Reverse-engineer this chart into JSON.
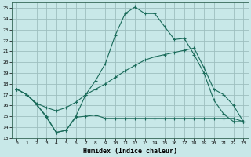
{
  "xlabel": "Humidex (Indice chaleur)",
  "bg_color": "#c8e8e8",
  "grid_color": "#9dbfbf",
  "line_color": "#1a6b5a",
  "x_ticks": [
    0,
    1,
    2,
    3,
    4,
    5,
    6,
    7,
    8,
    9,
    10,
    11,
    12,
    13,
    14,
    15,
    16,
    17,
    18,
    19,
    20,
    21,
    22,
    23
  ],
  "ylim": [
    13,
    25.5
  ],
  "xlim": [
    -0.5,
    23.5
  ],
  "y_ticks": [
    13,
    14,
    15,
    16,
    17,
    18,
    19,
    20,
    21,
    22,
    23,
    24,
    25
  ],
  "line1_y": [
    17.5,
    17.0,
    16.1,
    14.9,
    13.5,
    13.7,
    14.9,
    15.0,
    15.1,
    14.8,
    14.8,
    14.8,
    14.8,
    14.8,
    14.8,
    14.8,
    14.8,
    14.8,
    14.8,
    14.8,
    14.8,
    14.8,
    14.8,
    14.5
  ],
  "line2_y": [
    17.5,
    17.0,
    16.1,
    15.0,
    13.5,
    13.7,
    15.0,
    17.0,
    18.3,
    19.9,
    22.5,
    24.5,
    25.1,
    24.5,
    24.5,
    23.3,
    22.1,
    22.2,
    20.7,
    19.0,
    16.5,
    15.2,
    14.5,
    14.5
  ],
  "line3_y": [
    17.5,
    17.0,
    16.2,
    15.8,
    15.5,
    15.8,
    16.3,
    17.0,
    17.5,
    18.0,
    18.6,
    19.2,
    19.7,
    20.2,
    20.5,
    20.7,
    20.9,
    21.1,
    21.3,
    19.5,
    17.5,
    17.0,
    16.0,
    14.5
  ]
}
